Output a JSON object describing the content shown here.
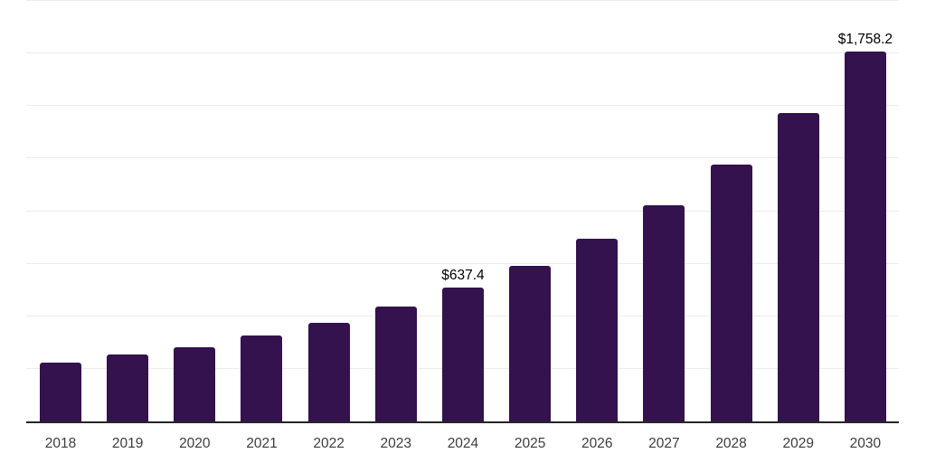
{
  "page": {
    "background": "#ffffff"
  },
  "chart_data": {
    "type": "bar",
    "categories": [
      "2018",
      "2019",
      "2020",
      "2021",
      "2022",
      "2023",
      "2024",
      "2025",
      "2026",
      "2027",
      "2028",
      "2029",
      "2030"
    ],
    "values": [
      280,
      318,
      353,
      408,
      467,
      546,
      637.4,
      740,
      870,
      1028,
      1220,
      1465,
      1758.2
    ],
    "data_labels": [
      "",
      "",
      "",
      "",
      "",
      "",
      "$637.4",
      "",
      "",
      "",
      "",
      "",
      "$1,758.2"
    ],
    "ylim": [
      0,
      2000
    ],
    "gridline_step": 250,
    "grid": true,
    "legend": false,
    "y_axis_tick_labels_visible": false,
    "colors": {
      "bar": "#33124d",
      "gridline": "#ececec",
      "axis": "#262626",
      "x_tick_label": "#3d3d3d",
      "data_label": "#000000"
    }
  }
}
